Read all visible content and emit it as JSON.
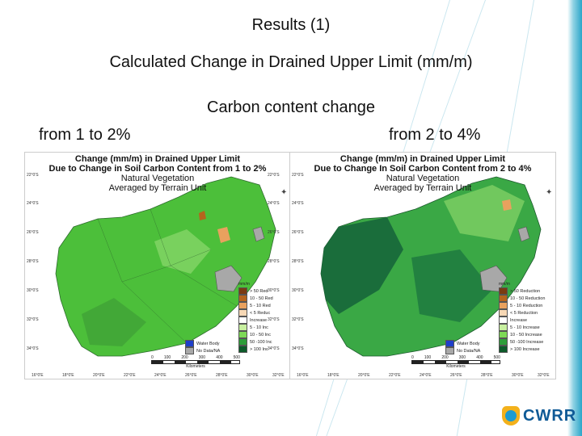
{
  "slide": {
    "title": "Results (1)",
    "subtitle": "Calculated Change in Drained Upper Limit (mm/m)",
    "carbon_heading": "Carbon content change",
    "range_left": "from 1 to 2%",
    "range_right": "from 2 to 4%"
  },
  "maps": {
    "left": {
      "title_line1": "Change (mm/m) in Drained Upper Limit",
      "title_line2": "Due to Change in Soil Carbon Content from 1 to 2%",
      "title_line3": "Natural Vegetation",
      "title_line4": "Averaged by Terrain Unit",
      "lat_labels": [
        "22°0'S",
        "24°0'S",
        "26°0'S",
        "28°0'S",
        "30°0'S",
        "32°0'S",
        "34°0'S"
      ],
      "lat_labels_right": [
        "22°0'S",
        "24°0'S",
        "26°0'S",
        "28°0'S",
        "30°0'S",
        "32°0'S",
        "34°0'S"
      ],
      "lon_labels": [
        "16°0'E",
        "18°0'E",
        "20°0'E",
        "22°0'E",
        "24°0'E",
        "26°0'E",
        "28°0'E",
        "30°0'E",
        "32°0'E"
      ],
      "legend_title": "mm/m",
      "legend": [
        {
          "label": "> 50 Red",
          "color": "#7a3b12"
        },
        {
          "label": "10 - 50 Red",
          "color": "#b5651d"
        },
        {
          "label": "5 - 10 Red",
          "color": "#e9a15e"
        },
        {
          "label": "< 5 Reduc",
          "color": "#f7d8b5"
        },
        {
          "label": "Increase",
          "color": "#ffffff"
        },
        {
          "label": "5 - 10 Inc",
          "color": "#c8f0a0"
        },
        {
          "label": "10 - 50 Inc",
          "color": "#7ed957"
        },
        {
          "label": "50 -100 Inc",
          "color": "#2e9e3a"
        },
        {
          "label": "> 100 Inc",
          "color": "#0d5b2a"
        }
      ],
      "legend_extra": [
        {
          "label": "Water Body",
          "color": "#1f3fc9"
        },
        {
          "label": "No Data/NA",
          "color": "#a8a8a8"
        }
      ],
      "scale_labels": [
        "0",
        "100",
        "200",
        "300",
        "400",
        "500"
      ],
      "scale_units": "Kilometers",
      "colors": {
        "base": "#4cbf3a",
        "dark": "#237a2f",
        "light": "#9fe07a"
      }
    },
    "right": {
      "title_line1": "Change (mm/m) in Drained Upper Limit",
      "title_line2": "Due to Change In Soil Carbon Content from 2 to 4%",
      "title_line3": "Natural Vegetation",
      "title_line4": "Averaged by Terrain Unit",
      "lat_labels": [
        "22°0'S",
        "24°0'S",
        "26°0'S",
        "28°0'S",
        "30°0'S",
        "32°0'S",
        "34°0'S"
      ],
      "lon_labels": [
        "16°0'E",
        "18°0'E",
        "20°0'E",
        "22°0'E",
        "24°0'E",
        "26°0'E",
        "28°0'E",
        "30°0'E",
        "32°0'E"
      ],
      "legend_title": "mm/m",
      "legend": [
        {
          "label": "> 50 Reduction",
          "color": "#7a3b12"
        },
        {
          "label": "10 - 50 Reduction",
          "color": "#b5651d"
        },
        {
          "label": "5 - 10 Reduction",
          "color": "#e9a15e"
        },
        {
          "label": "< 5 Reduction",
          "color": "#f7d8b5"
        },
        {
          "label": "Increase",
          "color": "#ffffff"
        },
        {
          "label": "5 - 10 Increase",
          "color": "#c8f0a0"
        },
        {
          "label": "10 - 50 Increase",
          "color": "#7ed957"
        },
        {
          "label": "50 -100 Increase",
          "color": "#2e9e3a"
        },
        {
          "label": "> 100 Increase",
          "color": "#0d5b2a"
        }
      ],
      "legend_extra": [
        {
          "label": "Water Body",
          "color": "#1f3fc9"
        },
        {
          "label": "No Data/NA",
          "color": "#a8a8a8"
        }
      ],
      "scale_labels": [
        "0",
        "100",
        "200",
        "300",
        "400",
        "500"
      ],
      "scale_units": "Kilometers",
      "colors": {
        "base": "#3aa845",
        "dark": "#17663a",
        "light": "#7fd064"
      }
    }
  },
  "logo": {
    "text": "CWRR"
  },
  "accent_color": "#2aa6c9"
}
